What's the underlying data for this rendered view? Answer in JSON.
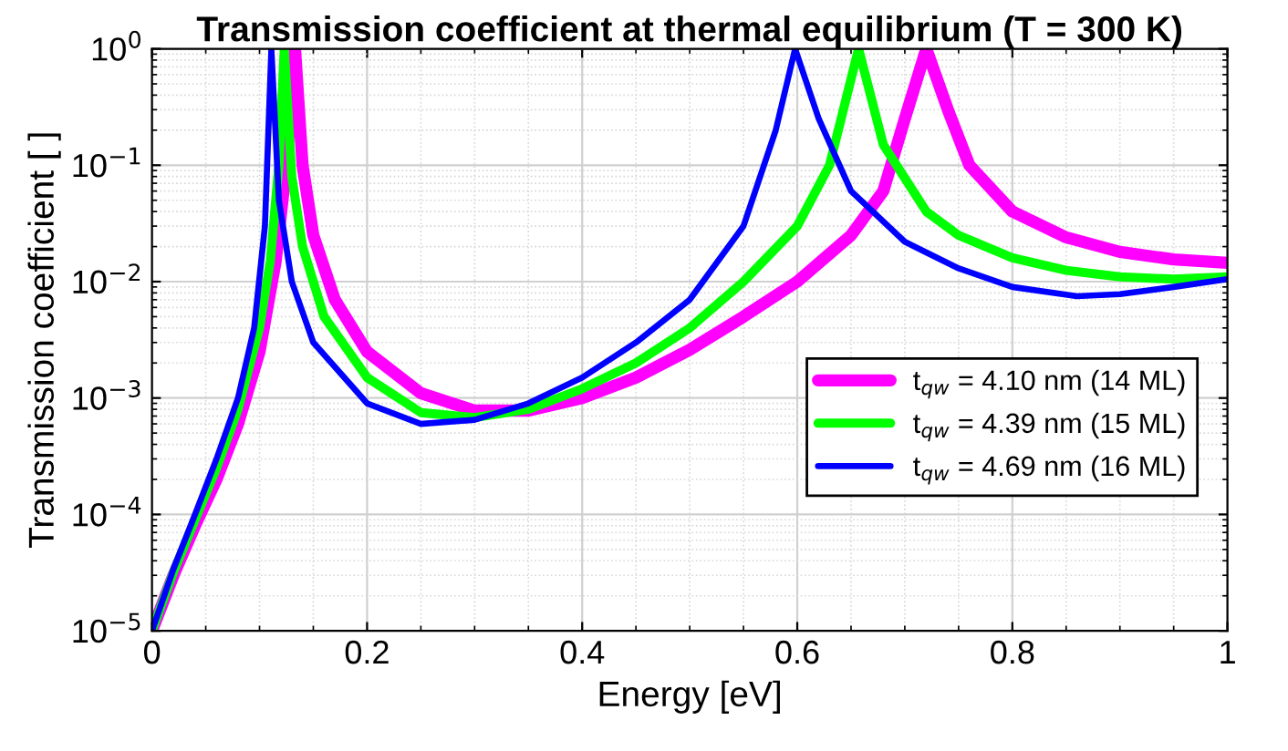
{
  "chart_data": {
    "type": "line",
    "title": "Transmission coefficient at thermal equilibrium (T = 300 K)",
    "xlabel": "Energy [eV]",
    "ylabel": "Transmission coefficient [ ]",
    "xlim": [
      0,
      1
    ],
    "xticks": [
      0,
      0.2,
      0.4,
      0.6,
      0.8,
      1
    ],
    "ylim": [
      1e-05,
      1
    ],
    "yticks": [
      {
        "value": 1e-05,
        "label": "10$^{−5}$"
      },
      {
        "value": 0.0001,
        "label": "10$^{−4}$"
      },
      {
        "value": 0.001,
        "label": "10$^{−3}$"
      },
      {
        "value": 0.01,
        "label": "10$^{−2}$"
      },
      {
        "value": 0.1,
        "label": "10$^{−1}$"
      },
      {
        "value": 1,
        "label": "10$^{0}$"
      }
    ],
    "log": "y",
    "grid": true,
    "legend": "center right",
    "marker": "none",
    "line_style": "solid",
    "series": [
      {
        "name": "t$_{qw}$ = 4.10 nm (14 ML)",
        "color": "#ff00ff",
        "x": [
          0,
          0.02,
          0.04,
          0.06,
          0.08,
          0.1,
          0.115,
          0.125,
          0.133,
          0.14,
          0.15,
          0.17,
          0.2,
          0.25,
          0.3,
          0.35,
          0.4,
          0.45,
          0.5,
          0.55,
          0.6,
          0.65,
          0.68,
          0.7,
          0.72,
          0.74,
          0.76,
          0.8,
          0.85,
          0.9,
          0.95,
          1.0
        ],
        "values": [
          1e-05,
          3e-05,
          8e-05,
          0.0002,
          0.0006,
          0.0025,
          0.015,
          0.1,
          1,
          0.1,
          0.025,
          0.007,
          0.0025,
          0.0011,
          0.00078,
          0.00078,
          0.001,
          0.0015,
          0.0026,
          0.005,
          0.01,
          0.025,
          0.06,
          0.25,
          1,
          0.3,
          0.1,
          0.04,
          0.024,
          0.018,
          0.0155,
          0.0145
        ]
      },
      {
        "name": "t$_{qw}$ = 4.39 nm (15 ML)",
        "color": "#00ff00",
        "x": [
          0,
          0.02,
          0.04,
          0.06,
          0.08,
          0.1,
          0.11,
          0.118,
          0.123,
          0.13,
          0.14,
          0.16,
          0.2,
          0.25,
          0.3,
          0.35,
          0.4,
          0.45,
          0.5,
          0.55,
          0.6,
          0.63,
          0.657,
          0.68,
          0.72,
          0.75,
          0.8,
          0.85,
          0.9,
          0.95,
          1.0
        ],
        "values": [
          1e-05,
          3.2e-05,
          9e-05,
          0.00025,
          0.0008,
          0.004,
          0.015,
          0.1,
          1,
          0.08,
          0.02,
          0.005,
          0.0015,
          0.00075,
          0.00068,
          0.0008,
          0.0012,
          0.002,
          0.004,
          0.01,
          0.03,
          0.1,
          1,
          0.15,
          0.04,
          0.025,
          0.016,
          0.0125,
          0.011,
          0.0105,
          0.011
        ]
      },
      {
        "name": "t$_{qw}$ = 4.69 nm (16 ML)",
        "color": "#0000ff",
        "x": [
          0,
          0.02,
          0.04,
          0.06,
          0.08,
          0.095,
          0.105,
          0.111,
          0.118,
          0.13,
          0.15,
          0.2,
          0.25,
          0.3,
          0.35,
          0.4,
          0.45,
          0.5,
          0.55,
          0.58,
          0.598,
          0.62,
          0.65,
          0.7,
          0.75,
          0.8,
          0.86,
          0.9,
          0.95,
          1.0
        ],
        "values": [
          1e-05,
          3.4e-05,
          0.0001,
          0.0003,
          0.001,
          0.004,
          0.03,
          1,
          0.05,
          0.01,
          0.003,
          0.0009,
          0.0006,
          0.00065,
          0.0009,
          0.0015,
          0.003,
          0.007,
          0.03,
          0.2,
          1,
          0.25,
          0.06,
          0.022,
          0.013,
          0.009,
          0.0075,
          0.0078,
          0.009,
          0.0105
        ]
      }
    ]
  }
}
